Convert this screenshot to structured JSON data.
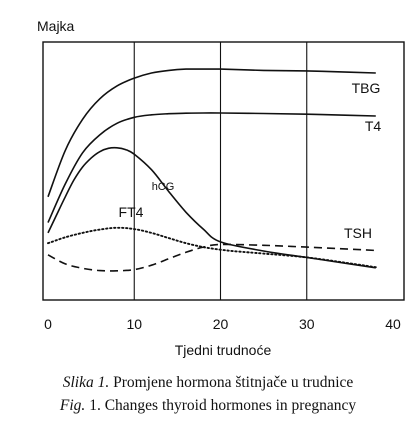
{
  "chart_data": {
    "type": "line",
    "ylabel": "Majka",
    "xlabel": "Tjedni trudnoće",
    "xlim": [
      0,
      40
    ],
    "xticks": [
      0,
      10,
      20,
      30,
      40
    ],
    "ylim": [
      0,
      100
    ],
    "grid": "vertical lines at 10, 20, 30",
    "series": [
      {
        "name": "TBG",
        "style": "solid",
        "x": [
          0,
          2,
          4,
          6,
          8,
          10,
          12,
          14,
          16,
          18,
          20,
          25,
          30,
          35,
          38
        ],
        "y": [
          40,
          58,
          70,
          78,
          83,
          86,
          88,
          89,
          89.5,
          89.5,
          89.5,
          89,
          88.8,
          88.3,
          88
        ]
      },
      {
        "name": "T4",
        "style": "solid",
        "x": [
          0,
          2,
          4,
          6,
          8,
          10,
          12,
          14,
          16,
          18,
          20,
          25,
          30,
          35,
          38
        ],
        "y": [
          30,
          45,
          57,
          64,
          68.5,
          70.8,
          71.8,
          72.2,
          72.4,
          72.5,
          72.5,
          72.3,
          72,
          71.6,
          71.3
        ]
      },
      {
        "name": "hCG",
        "style": "solid",
        "x": [
          0,
          1,
          2,
          3,
          4,
          5,
          6,
          7,
          8,
          9,
          10,
          12,
          14,
          16,
          18,
          20,
          25,
          30,
          35,
          38
        ],
        "y": [
          26,
          33,
          40,
          46.5,
          51.5,
          55,
          57.5,
          58.8,
          59,
          58.3,
          56.5,
          50.5,
          42,
          34,
          27.5,
          22.5,
          19,
          16.5,
          14,
          12.5
        ]
      },
      {
        "name": "FT4",
        "style": "dotted",
        "x": [
          0,
          2,
          4,
          6,
          8,
          10,
          12,
          14,
          16,
          18,
          20,
          22,
          25,
          30,
          35,
          38
        ],
        "y": [
          22,
          24.3,
          26,
          27.3,
          28,
          27.5,
          26,
          24,
          22,
          20.5,
          19.5,
          18.8,
          18,
          16.5,
          14.2,
          12.7
        ]
      },
      {
        "name": "TSH",
        "style": "dashed",
        "x": [
          0,
          2,
          4,
          6,
          8,
          10,
          12,
          14,
          16,
          18,
          20,
          25,
          30,
          35,
          38
        ],
        "y": [
          17.5,
          14,
          12.3,
          11.4,
          11.3,
          11.8,
          13.5,
          16,
          18.5,
          20.5,
          21.5,
          21.2,
          20.5,
          19.7,
          19.2
        ]
      }
    ],
    "labels": [
      "TBG",
      "T4",
      "hCG",
      "FT4",
      "TSH"
    ]
  },
  "caption": {
    "line1_prefix": "Slika 1.",
    "line1_text": " Promjene hormona štitnjače u trudnice",
    "line2_prefix": "Fig.",
    "line2_text": " 1. Changes thyroid hormones in pregnancy"
  }
}
